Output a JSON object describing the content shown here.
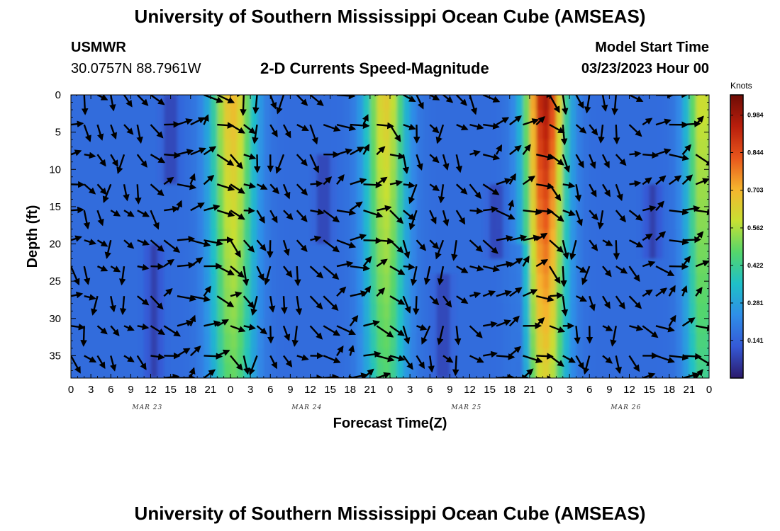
{
  "header": {
    "title": "University of Southern Mississippi Ocean Cube (AMSEAS)",
    "station": "USMWR",
    "coords": "30.0757N  88.7961W",
    "subtitle": "2-D Currents Speed-Magnitude",
    "start_label": "Model Start Time",
    "start_value": "03/23/2023 Hour 00"
  },
  "footer": {
    "title": "University of Southern Mississippi Ocean Cube (AMSEAS)"
  },
  "chart_data": {
    "type": "heatmap",
    "title": "2-D Currents Speed-Magnitude",
    "xlabel": "Forecast Time(Z)",
    "ylabel": "Depth (ft)",
    "x_ticks": [
      "0",
      "3",
      "6",
      "9",
      "12",
      "15",
      "18",
      "21",
      "0",
      "3",
      "6",
      "9",
      "12",
      "15",
      "18",
      "21",
      "0",
      "3",
      "6",
      "9",
      "12",
      "15",
      "18",
      "21",
      "0",
      "3",
      "6",
      "9",
      "12",
      "15",
      "18",
      "21",
      "0"
    ],
    "day_labels": [
      "MAR 23",
      "MAR 24",
      "MAR 25",
      "MAR 26"
    ],
    "y_ticks": [
      0,
      5,
      10,
      15,
      20,
      25,
      30,
      35
    ],
    "xlim_hours": [
      0,
      96
    ],
    "ylim_ft": [
      0,
      38
    ],
    "colorbar": {
      "unit": "Knots",
      "ticks": [
        "0.984",
        "0.844",
        "0.703",
        "0.562",
        "0.422",
        "0.281",
        "0.141"
      ],
      "range": [
        0,
        1.06
      ]
    },
    "colors": [
      "#2b1a6b",
      "#3559d6",
      "#2f8ee8",
      "#1fc0c8",
      "#55d66b",
      "#c8e033",
      "#f5b52e",
      "#e8561c",
      "#b81e0c",
      "#6e0c05"
    ],
    "speed_bands": [
      {
        "center_hour": 24.3,
        "width_hours": 3.2,
        "peak": 0.7
      },
      {
        "center_hour": 47.3,
        "width_hours": 3.0,
        "peak": 0.66
      },
      {
        "center_hour": 71.3,
        "width_hours": 3.0,
        "peak": 0.98
      },
      {
        "center_hour": 95.0,
        "width_hours": 2.5,
        "peak": 0.62
      }
    ],
    "vector_columns_hours": [
      0,
      2,
      4,
      6,
      8,
      10,
      12,
      14,
      16,
      18,
      20,
      22,
      24,
      26,
      28,
      30,
      32,
      34,
      36,
      38,
      40,
      42,
      44,
      46,
      48,
      50,
      52,
      54,
      56,
      58,
      60,
      62,
      64,
      66,
      68,
      70,
      72,
      74,
      76,
      78,
      80,
      82,
      84,
      86,
      88,
      90,
      92,
      94,
      96
    ],
    "vector_rows_ft": [
      0,
      4,
      8,
      12,
      15.5,
      19.5,
      23,
      27,
      31,
      35,
      38
    ]
  }
}
